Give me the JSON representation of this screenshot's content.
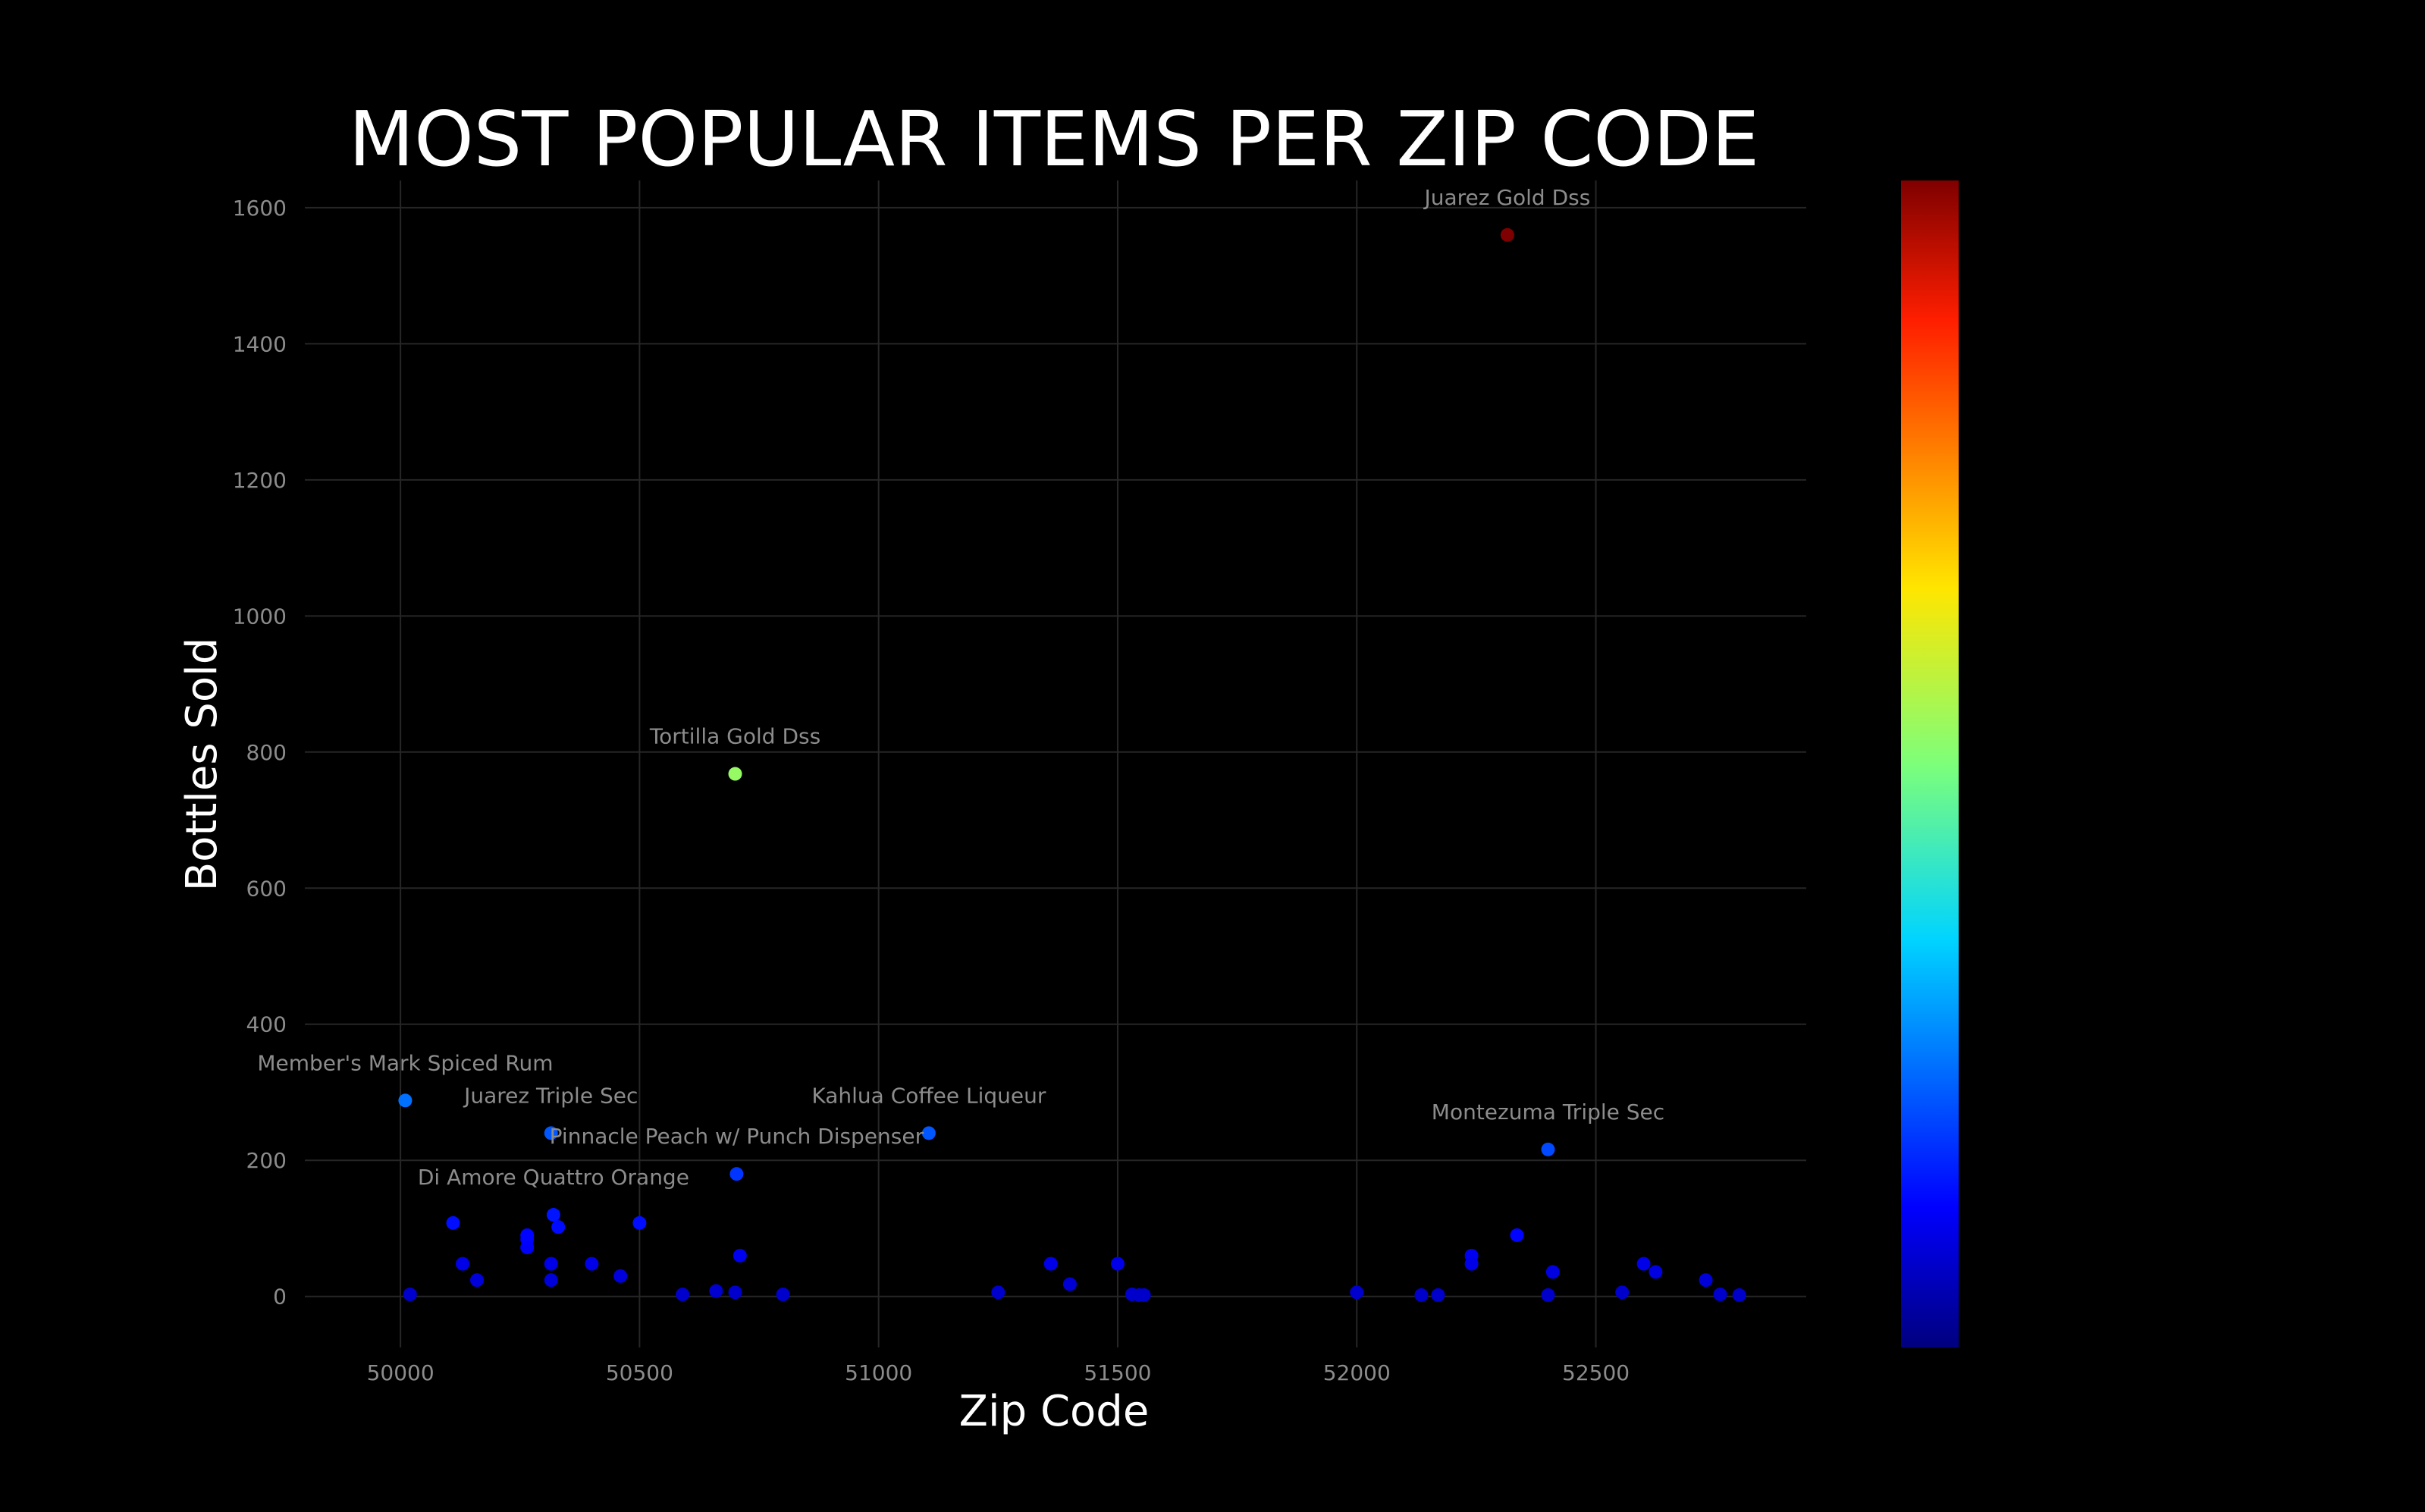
{
  "chart_data": {
    "type": "scatter",
    "title": "MOST POPULAR ITEMS PER ZIP CODE",
    "xlabel": "Zip Code",
    "ylabel": "Bottles Sold",
    "xlim": [
      49800,
      52940
    ],
    "ylim": [
      -75,
      1640
    ],
    "x_ticks": [
      50000,
      50500,
      51000,
      51500,
      52000,
      52500
    ],
    "y_ticks": [
      0,
      200,
      400,
      600,
      800,
      1000,
      1200,
      1400,
      1600
    ],
    "grid": true,
    "legend": "none",
    "colorscale": "jet",
    "colorbar": true,
    "color_range": [
      0,
      1560
    ],
    "points": [
      {
        "x": 50020,
        "y": 3
      },
      {
        "x": 50010,
        "y": 288,
        "label": "Member's Mark Spiced Rum"
      },
      {
        "x": 50110,
        "y": 108
      },
      {
        "x": 50130,
        "y": 48
      },
      {
        "x": 50160,
        "y": 24
      },
      {
        "x": 50265,
        "y": 72
      },
      {
        "x": 50265,
        "y": 84
      },
      {
        "x": 50265,
        "y": 90
      },
      {
        "x": 50315,
        "y": 240,
        "label": "Juarez Triple Sec"
      },
      {
        "x": 50320,
        "y": 120,
        "label": "Di Amore Quattro Orange"
      },
      {
        "x": 50315,
        "y": 48
      },
      {
        "x": 50315,
        "y": 24
      },
      {
        "x": 50330,
        "y": 102
      },
      {
        "x": 50400,
        "y": 48
      },
      {
        "x": 50460,
        "y": 30
      },
      {
        "x": 50500,
        "y": 108
      },
      {
        "x": 50590,
        "y": 3
      },
      {
        "x": 50660,
        "y": 8
      },
      {
        "x": 50700,
        "y": 6
      },
      {
        "x": 50700,
        "y": 768,
        "label": "Tortilla Gold Dss"
      },
      {
        "x": 50703,
        "y": 180,
        "label": "Pinnacle Peach w/ Punch Dispenser"
      },
      {
        "x": 50710,
        "y": 60
      },
      {
        "x": 50800,
        "y": 3
      },
      {
        "x": 51105,
        "y": 240,
        "label": "Kahlua Coffee Liqueur"
      },
      {
        "x": 51250,
        "y": 6
      },
      {
        "x": 51360,
        "y": 48
      },
      {
        "x": 51400,
        "y": 18
      },
      {
        "x": 51500,
        "y": 48
      },
      {
        "x": 51530,
        "y": 3
      },
      {
        "x": 51545,
        "y": 2
      },
      {
        "x": 51555,
        "y": 2
      },
      {
        "x": 52000,
        "y": 6
      },
      {
        "x": 52135,
        "y": 2
      },
      {
        "x": 52170,
        "y": 2
      },
      {
        "x": 52240,
        "y": 60
      },
      {
        "x": 52240,
        "y": 48
      },
      {
        "x": 52315,
        "y": 1560,
        "label": "Juarez Gold Dss"
      },
      {
        "x": 52335,
        "y": 90
      },
      {
        "x": 52400,
        "y": 216,
        "label": "Montezuma Triple Sec"
      },
      {
        "x": 52400,
        "y": 2
      },
      {
        "x": 52410,
        "y": 36
      },
      {
        "x": 52555,
        "y": 6
      },
      {
        "x": 52600,
        "y": 48
      },
      {
        "x": 52625,
        "y": 36
      },
      {
        "x": 52730,
        "y": 24
      },
      {
        "x": 52760,
        "y": 3
      },
      {
        "x": 52800,
        "y": 2
      }
    ]
  }
}
